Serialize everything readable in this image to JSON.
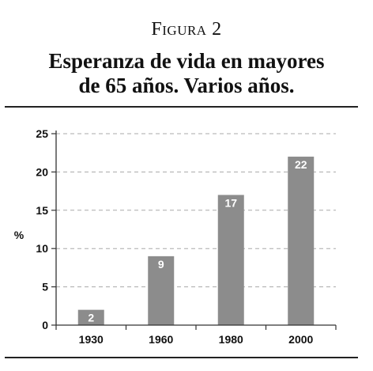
{
  "figure_label": "Figura 2",
  "title_lines": [
    "Esperanza de vida en mayores",
    "de 65 años. Varios años."
  ],
  "chart_data": {
    "type": "bar",
    "title": "Esperanza de vida en mayores de 65 años. Varios años.",
    "xlabel": "",
    "ylabel": "%",
    "categories": [
      "1930",
      "1960",
      "1980",
      "2000"
    ],
    "values": [
      2,
      9,
      17,
      22
    ],
    "data_labels": [
      "2",
      "9",
      "17",
      "22"
    ],
    "ylim": [
      0,
      25
    ],
    "yticks": [
      0,
      5,
      10,
      15,
      20,
      25
    ],
    "grid": "horizontal-dashed",
    "legend": "none",
    "bar_color": "#8c8c8c",
    "grid_color": "#aaaaaa",
    "axis_color": "#333333"
  }
}
